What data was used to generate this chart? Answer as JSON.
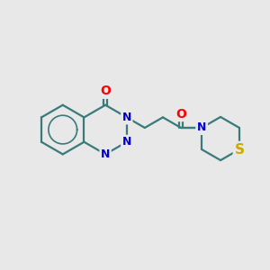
{
  "background_color": "#e8e8e8",
  "bond_color": "#3a7a7a",
  "bond_width": 1.6,
  "atom_colors": {
    "N": "#0000cc",
    "O": "#ff0000",
    "S": "#ccaa00",
    "C": "#3a7a7a"
  },
  "font_size_N": 9,
  "font_size_O": 10,
  "font_size_S": 11,
  "figsize": [
    3.0,
    3.0
  ],
  "dpi": 100,
  "xlim": [
    0,
    10
  ],
  "ylim": [
    0,
    10
  ]
}
